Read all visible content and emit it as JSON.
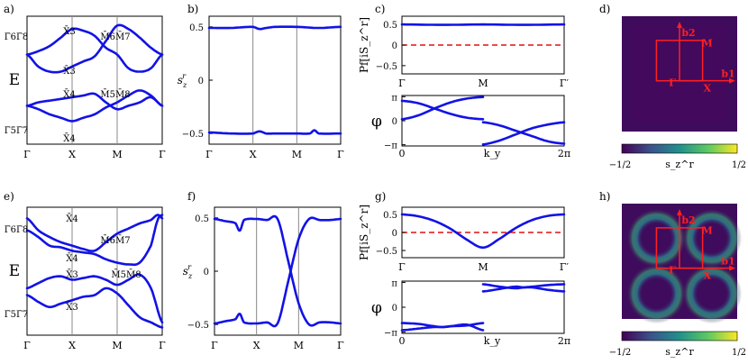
{
  "chart_data": [
    {
      "panel": "a)",
      "type": "line",
      "x_ticks": [
        "Γ",
        "X",
        "M",
        "Γ"
      ],
      "ylabel": "E",
      "band_labels": [
        "Γ̄6Γ̄8",
        "X̄3",
        "M̄6M̄7",
        "X̄3",
        "X̄4",
        "M̄5M̄8",
        "Γ̄5Γ̄7",
        "X̄4"
      ],
      "series": [
        {
          "x": [
            0,
            0.5,
            1,
            1.5,
            2,
            2.5,
            3,
            3.5,
            4.0,
            4.5,
            5.0,
            5.5,
            6.0
          ],
          "y": [
            0.3,
            0.16,
            0.1,
            0.1,
            0.16,
            0.22,
            0.28,
            0.46,
            0.64,
            0.6,
            0.5,
            0.38,
            0.3
          ]
        },
        {
          "x": [
            0,
            0.5,
            1,
            1.5,
            2,
            2.5,
            3,
            3.5,
            4.0,
            4.5,
            5.0,
            5.5,
            6.0
          ],
          "y": [
            0.3,
            0.34,
            0.4,
            0.5,
            0.6,
            0.58,
            0.52,
            0.38,
            0.3,
            0.14,
            0.1,
            0.14,
            0.3
          ]
        },
        {
          "x": [
            0,
            0.5,
            1,
            1.5,
            2,
            2.5,
            3,
            3.5,
            4.0,
            4.5,
            5.0,
            5.5,
            6.0
          ],
          "y": [
            -0.3,
            -0.26,
            -0.24,
            -0.22,
            -0.2,
            -0.18,
            -0.16,
            -0.26,
            -0.34,
            -0.3,
            -0.26,
            -0.2,
            -0.3
          ]
        },
        {
          "x": [
            0,
            0.5,
            1,
            1.5,
            2,
            2.5,
            3,
            3.5,
            4.0,
            4.5,
            5.0,
            5.5,
            6.0
          ],
          "y": [
            -0.3,
            -0.34,
            -0.4,
            -0.44,
            -0.48,
            -0.44,
            -0.4,
            -0.32,
            -0.26,
            -0.18,
            -0.12,
            -0.18,
            -0.3
          ]
        }
      ]
    },
    {
      "panel": "b)",
      "type": "line",
      "x_ticks": [
        "Γ",
        "X",
        "M",
        "Γ"
      ],
      "y_ticks": [
        "0.5",
        "0",
        "−0.5"
      ],
      "ylabel": "s_z^r",
      "ylim": [
        -0.6,
        0.6
      ],
      "series": [
        {
          "x": [
            0,
            1,
            2,
            2.3,
            2.6,
            3,
            4,
            5,
            6
          ],
          "y": [
            0.49,
            0.49,
            0.5,
            0.48,
            0.49,
            0.5,
            0.5,
            0.49,
            0.5
          ]
        },
        {
          "x": [
            0,
            1,
            2,
            2.3,
            2.6,
            3,
            4,
            4.6,
            4.8,
            5,
            6
          ],
          "y": [
            -0.49,
            -0.5,
            -0.5,
            -0.48,
            -0.5,
            -0.5,
            -0.5,
            -0.5,
            -0.47,
            -0.5,
            -0.5
          ]
        }
      ]
    },
    {
      "panel": "c)",
      "type": "line",
      "x_ticks": [
        "Γ",
        "M",
        "Γ′"
      ],
      "y_ticks": [
        "0.5",
        "0",
        "−0.5"
      ],
      "ylabel": "Pf[iS_z^r]",
      "ylim": [
        -0.7,
        0.7
      ],
      "series": [
        {
          "x": [
            0,
            0.5,
            1,
            1.5,
            2
          ],
          "y": [
            0.5,
            0.49,
            0.5,
            0.49,
            0.5
          ]
        }
      ],
      "reference_line": 0
    },
    {
      "panel": "c) lower",
      "type": "line",
      "x_ticks": [
        "0",
        "k_y",
        "2π"
      ],
      "y_ticks": [
        "π",
        "0",
        "−π"
      ],
      "ylabel": "φ",
      "series": [
        {
          "x": [
            0,
            0.1,
            0.2,
            0.3,
            0.4,
            0.5
          ],
          "y": [
            2.6,
            2.3,
            1.6,
            0.9,
            0.4,
            0.2
          ]
        },
        {
          "x": [
            0,
            0.1,
            0.2,
            0.3,
            0.4,
            0.5
          ],
          "y": [
            0.2,
            0.7,
            1.6,
            2.4,
            2.9,
            3.1
          ]
        },
        {
          "x": [
            0.5,
            0.6,
            0.7,
            0.8,
            0.9,
            1.0
          ],
          "y": [
            -3.1,
            -2.6,
            -1.8,
            -1.0,
            -0.5,
            -0.2
          ]
        },
        {
          "x": [
            0.5,
            0.6,
            0.7,
            0.8,
            0.9,
            1.0
          ],
          "y": [
            -0.2,
            -0.6,
            -1.3,
            -2.0,
            -2.7,
            -3.0
          ]
        }
      ]
    },
    {
      "panel": "d)",
      "type": "heatmap",
      "colorbar_ticks": [
        "−1/2",
        "s_z^r",
        "1/2"
      ],
      "annotations": [
        "b2",
        "b1",
        "M",
        "Γ",
        "X"
      ],
      "value": "uniform ≈ −0.5 (dark purple)"
    },
    {
      "panel": "e)",
      "type": "line",
      "x_ticks": [
        "Γ",
        "X",
        "M",
        "Γ"
      ],
      "ylabel": "E",
      "band_labels": [
        "Γ̄6Γ̄8",
        "X̄4",
        "M̄6M̄7",
        "X̄4",
        "X̄3",
        "M̄5M̄8",
        "Γ̄5Γ̄7",
        "X̄3"
      ],
      "series": [
        {
          "x": [
            0,
            0.5,
            1,
            1.5,
            2,
            2.5,
            3,
            3.5,
            4.0,
            4.5,
            5.0,
            5.5,
            5.8,
            6.0
          ],
          "y": [
            0.62,
            0.48,
            0.4,
            0.34,
            0.3,
            0.26,
            0.24,
            0.34,
            0.44,
            0.5,
            0.56,
            0.6,
            0.66,
            0.62
          ]
        },
        {
          "x": [
            0,
            0.5,
            1,
            1.5,
            2,
            2.5,
            3,
            3.5,
            4.0,
            4.5,
            5.0,
            5.5,
            5.8,
            6.0
          ],
          "y": [
            0.48,
            0.4,
            0.3,
            0.28,
            0.24,
            0.22,
            0.2,
            0.14,
            0.1,
            0.08,
            0.1,
            0.3,
            0.6,
            0.66
          ]
        },
        {
          "x": [
            0,
            0.5,
            1,
            1.5,
            2,
            2.5,
            3,
            3.5,
            4.0,
            4.5,
            5.0,
            5.5,
            6.0
          ],
          "y": [
            -0.2,
            -0.14,
            -0.08,
            -0.06,
            -0.1,
            -0.08,
            -0.06,
            -0.1,
            -0.16,
            -0.1,
            -0.04,
            -0.2,
            -0.6
          ]
        },
        {
          "x": [
            0,
            0.5,
            1,
            1.5,
            2,
            2.5,
            3,
            3.5,
            4.0,
            4.5,
            5.0,
            5.5,
            6.0
          ],
          "y": [
            -0.28,
            -0.36,
            -0.42,
            -0.38,
            -0.34,
            -0.3,
            -0.28,
            -0.2,
            -0.26,
            -0.4,
            -0.54,
            -0.6,
            -0.66
          ]
        }
      ]
    },
    {
      "panel": "f)",
      "type": "line",
      "x_ticks": [
        "Γ",
        "X",
        "M",
        "Γ"
      ],
      "y_ticks": [
        "0.5",
        "0",
        "−0.5"
      ],
      "ylabel": "s_z^r",
      "ylim": [
        -0.6,
        0.6
      ],
      "series": [
        {
          "x": [
            0,
            0.5,
            1.0,
            1.2,
            1.4,
            2,
            2.5,
            3.0,
            3.5,
            4.0,
            4.5,
            5.0,
            5.5,
            6.0
          ],
          "y": [
            0.49,
            0.47,
            0.45,
            0.38,
            0.48,
            0.49,
            0.48,
            0.49,
            0.1,
            -0.3,
            -0.5,
            -0.48,
            -0.48,
            -0.49
          ]
        },
        {
          "x": [
            0,
            0.5,
            1.0,
            1.2,
            1.4,
            2,
            2.5,
            3.0,
            3.5,
            4.0,
            4.5,
            5.0,
            5.5,
            6.0
          ],
          "y": [
            -0.49,
            -0.47,
            -0.45,
            -0.4,
            -0.48,
            -0.49,
            -0.48,
            -0.49,
            -0.1,
            0.3,
            0.49,
            0.48,
            0.48,
            0.49
          ]
        }
      ]
    },
    {
      "panel": "g)",
      "type": "line",
      "x_ticks": [
        "Γ",
        "M",
        "Γ′"
      ],
      "y_ticks": [
        "0.5",
        "0",
        "−0.5"
      ],
      "ylabel": "Pf[iS_z^r]",
      "ylim": [
        -0.7,
        0.7
      ],
      "series": [
        {
          "x": [
            0,
            0.2,
            0.4,
            0.6,
            0.8,
            1.0,
            1.2,
            1.4,
            1.6,
            1.8,
            2.0
          ],
          "y": [
            0.5,
            0.45,
            0.32,
            0.1,
            -0.2,
            -0.42,
            -0.18,
            0.12,
            0.34,
            0.46,
            0.5
          ]
        }
      ],
      "reference_line": 0
    },
    {
      "panel": "g) lower",
      "type": "line",
      "x_ticks": [
        "0",
        "k_y",
        "2π"
      ],
      "y_ticks": [
        "π",
        "0",
        "−π"
      ],
      "ylabel": "φ",
      "series": [
        {
          "x": [
            0,
            0.1,
            0.2,
            0.25,
            0.3,
            0.4,
            0.5
          ],
          "y": [
            -2.0,
            -2.1,
            -2.4,
            -2.5,
            -2.4,
            -2.2,
            -2.9
          ]
        },
        {
          "x": [
            0,
            0.1,
            0.2,
            0.25,
            0.3,
            0.4,
            0.5
          ],
          "y": [
            -2.9,
            -2.7,
            -2.5,
            -2.5,
            -2.4,
            -2.3,
            -2.0
          ]
        },
        {
          "x": [
            0.5,
            0.6,
            0.7,
            0.75,
            0.8,
            0.9,
            1.0
          ],
          "y": [
            2.0,
            2.3,
            2.6,
            2.5,
            2.5,
            2.2,
            2.0
          ]
        },
        {
          "x": [
            0.5,
            0.6,
            0.7,
            0.75,
            0.8,
            0.9,
            1.0
          ],
          "y": [
            2.9,
            2.6,
            2.4,
            2.5,
            2.6,
            2.8,
            2.9
          ]
        }
      ]
    },
    {
      "panel": "h)",
      "type": "heatmap",
      "colorbar_ticks": [
        "−1/2",
        "s_z^r",
        "1/2"
      ],
      "annotations": [
        "b2",
        "b1",
        "M",
        "Γ",
        "X"
      ],
      "value": "mostly ≈ −0.5 with green/teal rings around four square regions"
    }
  ],
  "colors": {
    "band": "#1212e6",
    "dashed_ref": "#e01010",
    "grid": "#888888",
    "heat_dark": "#440154",
    "heat_mid": "#21908c",
    "heat_bright": "#fde725",
    "bz_outline": "#ff2020"
  }
}
